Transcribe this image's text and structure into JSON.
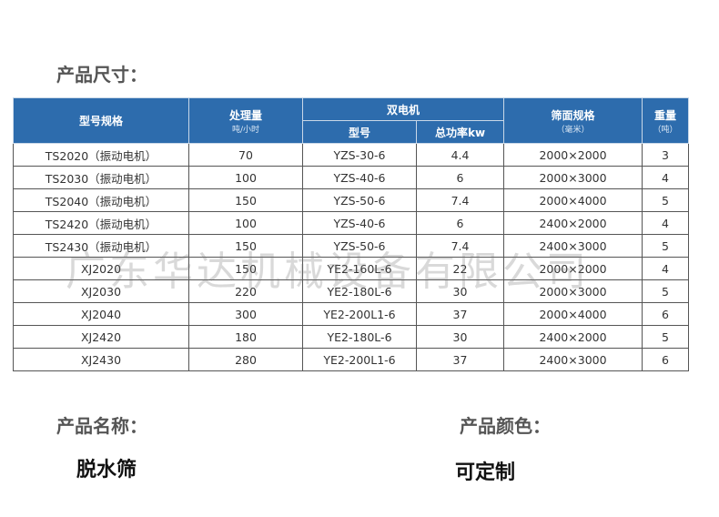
{
  "sections": {
    "size_title": "产品尺寸：",
    "name_title": "产品名称：",
    "name_value": "脱水筛",
    "color_title": "产品颜色：",
    "color_value": "可定制"
  },
  "watermark": "广东华达机械设备有限公司",
  "colors": {
    "header_bg": "#2d6cad"
  },
  "table": {
    "headers": {
      "model": "型号规格",
      "capacity": "处理量",
      "capacity_unit": "吨/小时",
      "motor": "双电机",
      "motor_model": "型号",
      "motor_power": "总功率kw",
      "screen": "筛面规格",
      "screen_unit": "（毫米）",
      "weight": "重量",
      "weight_unit": "（吨）"
    },
    "rows": [
      [
        "TS2020（振动电机）",
        "70",
        "YZS-30-6",
        "4.4",
        "2000×2000",
        "3"
      ],
      [
        "TS2030（振动电机）",
        "100",
        "YZS-40-6",
        "6",
        "2000×3000",
        "4"
      ],
      [
        "TS2040（振动电机）",
        "150",
        "YZS-50-6",
        "7.4",
        "2000×4000",
        "5"
      ],
      [
        "TS2420（振动电机）",
        "100",
        "YZS-40-6",
        "6",
        "2400×2000",
        "4"
      ],
      [
        "TS2430（振动电机）",
        "150",
        "YZS-50-6",
        "7.4",
        "2400×3000",
        "5"
      ],
      [
        "XJ2020",
        "150",
        "YE2-160L-6",
        "22",
        "2000×2000",
        "4"
      ],
      [
        "XJ2030",
        "220",
        "YE2-180L-6",
        "30",
        "2000×3000",
        "5"
      ],
      [
        "XJ2040",
        "300",
        "YE2-200L1-6",
        "37",
        "2000×4000",
        "6"
      ],
      [
        "XJ2420",
        "180",
        "YE2-180L-6",
        "30",
        "2400×2000",
        "5"
      ],
      [
        "XJ2430",
        "280",
        "YE2-200L1-6",
        "37",
        "2400×3000",
        "6"
      ]
    ]
  }
}
